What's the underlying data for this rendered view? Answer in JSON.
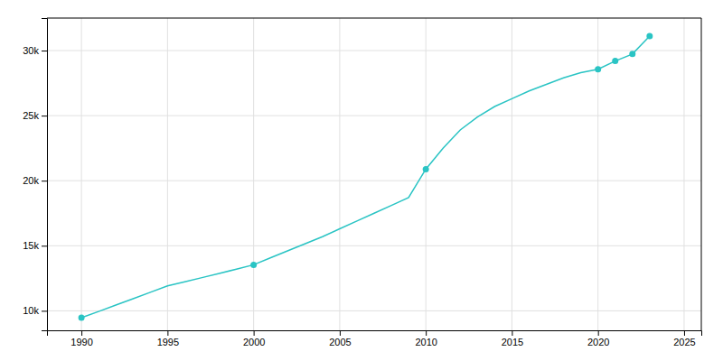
{
  "chart_data": {
    "type": "line",
    "x": [
      1990,
      1991,
      1992,
      1993,
      1994,
      1995,
      1996,
      1997,
      1998,
      1999,
      2000,
      2001,
      2002,
      2003,
      2004,
      2005,
      2006,
      2007,
      2008,
      2009,
      2010,
      2011,
      2012,
      2013,
      2014,
      2015,
      2016,
      2017,
      2018,
      2019,
      2020,
      2021,
      2022,
      2023
    ],
    "series": [
      {
        "type": "line",
        "color": "#2ac4c4",
        "values": [
          9467,
          9950,
          10440,
          10930,
          11420,
          11910,
          12230,
          12550,
          12870,
          13200,
          13536,
          14080,
          14620,
          15160,
          15700,
          16300,
          16900,
          17500,
          18100,
          18700,
          20884,
          22500,
          23900,
          24900,
          25700,
          26300,
          26900,
          27400,
          27900,
          28300,
          28561,
          29200,
          29736,
          31117
        ]
      },
      {
        "type": "scatter",
        "color": "#2ac4c4",
        "marker": "circle",
        "line_style": "none",
        "x": [
          1990,
          2000,
          2010,
          2020,
          2021,
          2022,
          2023
        ],
        "values": [
          9467,
          13536,
          20884,
          28561,
          29200,
          29736,
          31117
        ]
      }
    ],
    "xlim": [
      1988,
      2026
    ],
    "ylim": [
      8500,
      32500
    ],
    "xticks": [
      1990,
      1995,
      2000,
      2005,
      2010,
      2015,
      2020,
      2025
    ],
    "yticks": [
      {
        "value": 10000,
        "label": "10k"
      },
      {
        "value": 15000,
        "label": "15k"
      },
      {
        "value": 20000,
        "label": "20k"
      },
      {
        "value": 25000,
        "label": "25k"
      },
      {
        "value": 30000,
        "label": "30k"
      }
    ],
    "grid": true
  }
}
